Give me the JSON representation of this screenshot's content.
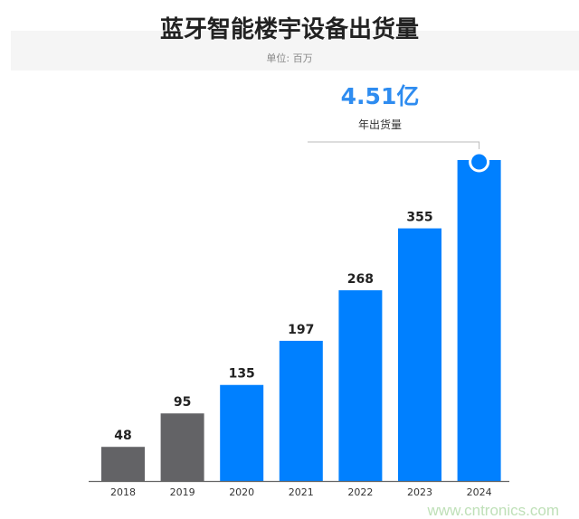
{
  "chart_data": {
    "type": "bar",
    "title": "蓝牙智能楼宇设备出货量",
    "subtitle": "单位: 百万",
    "categories": [
      "2018",
      "2019",
      "2020",
      "2021",
      "2022",
      "2023",
      "2024"
    ],
    "values": [
      48,
      95,
      135,
      197,
      268,
      355,
      451
    ],
    "data_labels": [
      "48",
      "95",
      "135",
      "197",
      "268",
      "355",
      ""
    ],
    "ylim": [
      0,
      451
    ],
    "grid": false,
    "colors": {
      "historical": "#636366",
      "forecast": "#0080ff"
    },
    "historical_categories": [
      "2018",
      "2019"
    ],
    "annotation": {
      "category": "2024",
      "value": "4.51亿",
      "label": "年出货量",
      "color": "#2e8cf0"
    }
  },
  "watermark": "www.cntronics.com"
}
